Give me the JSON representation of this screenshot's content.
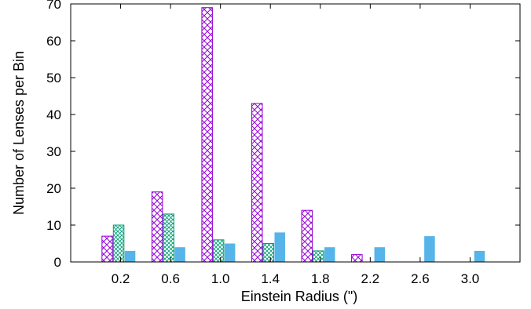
{
  "chart_data": {
    "type": "bar",
    "xlabel": "Einstein Radius (\")",
    "ylabel": "Number of Lenses per Bin",
    "ylim": [
      0,
      70
    ],
    "yticks": [
      0,
      10,
      20,
      30,
      40,
      50,
      60,
      70
    ],
    "xlim": [
      -0.2,
      3.4
    ],
    "xticks": [
      0.2,
      0.6,
      1.0,
      1.4,
      1.8,
      2.2,
      2.6,
      3.0
    ],
    "xtick_labels": [
      "0.2",
      "0.6",
      "1.0",
      "1.4",
      "1.8",
      "2.2",
      "2.6",
      "3.0"
    ],
    "categories": [
      "0.2",
      "0.6",
      "1.0",
      "1.4",
      "1.8",
      "2.2",
      "2.6",
      "3.0"
    ],
    "series": [
      {
        "values": [
          7,
          19,
          69,
          43,
          14,
          2,
          0,
          0
        ],
        "color": "#9400d3",
        "fill": "hatch-crosshatch"
      },
      {
        "values": [
          10,
          13,
          6,
          5,
          3,
          0,
          0,
          0
        ],
        "color": "#009e73",
        "fill": "hatch-fine-crosshatch"
      },
      {
        "values": [
          3,
          4,
          5,
          8,
          4,
          4,
          7,
          3
        ],
        "color": "#56b4e9",
        "fill": "solid"
      }
    ],
    "grid": false,
    "legend": "none"
  }
}
